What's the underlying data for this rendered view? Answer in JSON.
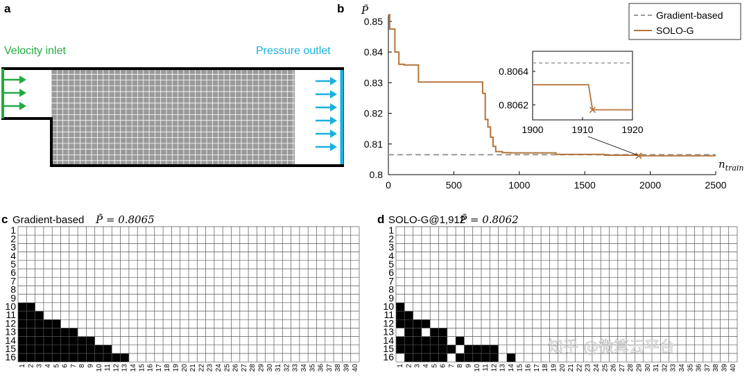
{
  "panel_a": {
    "label": "a",
    "inlet_label": "Velocity inlet",
    "outlet_label": "Pressure outlet",
    "inlet_color": "#22aa44",
    "outlet_color": "#1ab0e0",
    "mesh_color": "#9a9a9a"
  },
  "panel_b": {
    "label": "b",
    "ylabel": "P̃",
    "xlabel": "n_train",
    "legend": [
      "Gradient-based",
      "SOLO-G"
    ],
    "inset_yticks": [
      "0.8064",
      "0.8062"
    ],
    "inset_xticks": [
      "1900",
      "1910",
      "1920"
    ]
  },
  "panel_c": {
    "label": "c",
    "title_text": "Gradient-based",
    "title_math": "P̃ = 0.8065"
  },
  "panel_d": {
    "label": "d",
    "title_text": "SOLO-G@1,912",
    "title_math": "P̃ = 0.8062"
  },
  "watermark": "知乎 @微算云平台",
  "colors": {
    "gradient": "#999999",
    "solo": "#b5733a",
    "cell": "#000000"
  },
  "chart_data": [
    {
      "type": "line",
      "title": "",
      "xlabel": "n_train",
      "ylabel": "P̃",
      "xlim": [
        0,
        2500
      ],
      "ylim": [
        0.8,
        0.852
      ],
      "xticks": [
        0,
        500,
        1000,
        1500,
        2000,
        2500
      ],
      "yticks": [
        0.8,
        0.81,
        0.82,
        0.83,
        0.84,
        0.85
      ],
      "legend_position": "top-right",
      "series": [
        {
          "name": "Gradient-based",
          "style": "dashed",
          "x": [
            0,
            2500
          ],
          "y": [
            0.8065,
            0.8065
          ]
        },
        {
          "name": "SOLO-G",
          "style": "solid",
          "x": [
            0,
            10,
            10,
            50,
            50,
            80,
            80,
            120,
            120,
            230,
            230,
            720,
            720,
            740,
            740,
            760,
            760,
            780,
            780,
            800,
            800,
            820,
            820,
            870,
            870,
            930,
            930,
            1280,
            1280,
            1650,
            1650,
            1912,
            1912,
            2500
          ],
          "y": [
            0.8522,
            0.8522,
            0.8475,
            0.8475,
            0.84,
            0.84,
            0.836,
            0.836,
            0.8358,
            0.8358,
            0.8302,
            0.8302,
            0.8265,
            0.8265,
            0.818,
            0.818,
            0.8155,
            0.8155,
            0.8122,
            0.8122,
            0.8092,
            0.8092,
            0.8075,
            0.8075,
            0.8072,
            0.8072,
            0.8071,
            0.8071,
            0.8066,
            0.8066,
            0.80632,
            0.80632,
            0.80617,
            0.80617
          ]
        },
        {
          "name": "",
          "type": "scatter",
          "x": [
            1912
          ],
          "y": [
            0.80617
          ]
        }
      ],
      "inset": {
        "xlim": [
          1900,
          1920
        ],
        "ylim": [
          0.80611,
          0.80652
        ],
        "xticks": [
          1900,
          1910,
          1920
        ],
        "yticks": [
          0.8062,
          0.8064
        ]
      }
    },
    {
      "type": "heatmap",
      "title": "Gradient-based P̃ = 0.8065",
      "rows": 16,
      "cols": 40,
      "row_labels": [
        1,
        2,
        3,
        4,
        5,
        6,
        7,
        8,
        9,
        10,
        11,
        12,
        13,
        14,
        15,
        16
      ],
      "col_labels": [
        1,
        2,
        3,
        4,
        5,
        6,
        7,
        8,
        9,
        10,
        11,
        12,
        13,
        14,
        15,
        16,
        17,
        18,
        19,
        20,
        21,
        22,
        23,
        24,
        25,
        26,
        27,
        28,
        29,
        30,
        31,
        32,
        33,
        34,
        35,
        36,
        37,
        38,
        39,
        40
      ],
      "filled": [
        [
          10,
          2
        ],
        [
          11,
          3
        ],
        [
          12,
          5
        ],
        [
          13,
          7
        ],
        [
          14,
          9
        ],
        [
          15,
          11
        ],
        [
          16,
          13
        ]
      ]
    },
    {
      "type": "heatmap",
      "title": "SOLO-G@1,912 P̃ = 0.8062",
      "rows": 16,
      "cols": 40,
      "row_labels": [
        1,
        2,
        3,
        4,
        5,
        6,
        7,
        8,
        9,
        10,
        11,
        12,
        13,
        14,
        15,
        16
      ],
      "col_labels": [
        1,
        2,
        3,
        4,
        5,
        6,
        7,
        8,
        9,
        10,
        11,
        12,
        13,
        14,
        15,
        16,
        17,
        18,
        19,
        20,
        21,
        22,
        23,
        24,
        25,
        26,
        27,
        28,
        29,
        30,
        31,
        32,
        33,
        34,
        35,
        36,
        37,
        38,
        39,
        40
      ],
      "cells": [
        [
          10,
          1
        ],
        [
          11,
          1
        ],
        [
          11,
          2
        ],
        [
          12,
          1
        ],
        [
          12,
          2
        ],
        [
          12,
          3
        ],
        [
          12,
          4
        ],
        [
          13,
          2
        ],
        [
          13,
          3
        ],
        [
          13,
          5
        ],
        [
          13,
          6
        ],
        [
          14,
          1
        ],
        [
          14,
          2
        ],
        [
          14,
          3
        ],
        [
          14,
          4
        ],
        [
          14,
          5
        ],
        [
          14,
          6
        ],
        [
          14,
          8
        ],
        [
          15,
          1
        ],
        [
          15,
          2
        ],
        [
          15,
          3
        ],
        [
          15,
          4
        ],
        [
          15,
          5
        ],
        [
          15,
          6
        ],
        [
          15,
          7
        ],
        [
          15,
          9
        ],
        [
          15,
          10
        ],
        [
          15,
          11
        ],
        [
          15,
          12
        ],
        [
          16,
          2
        ],
        [
          16,
          3
        ],
        [
          16,
          4
        ],
        [
          16,
          5
        ],
        [
          16,
          6
        ],
        [
          16,
          8
        ],
        [
          16,
          9
        ],
        [
          16,
          10
        ],
        [
          16,
          11
        ],
        [
          16,
          12
        ],
        [
          16,
          14
        ]
      ]
    }
  ]
}
